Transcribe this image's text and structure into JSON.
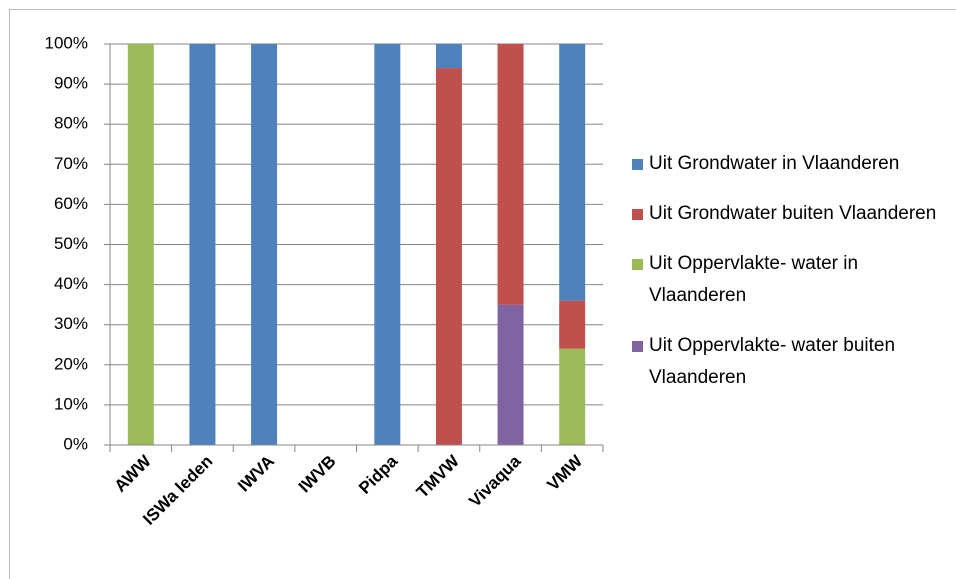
{
  "chart_data": {
    "type": "stacked_bar",
    "categories": [
      "AWW",
      "ISWa leden",
      "IWVA",
      "IWVB",
      "Pidpa",
      "TMVW",
      "Vivaqua",
      "VMW"
    ],
    "series": [
      {
        "name": "Uit Oppervlakte- water buiten Vlaanderen",
        "color": "#8064a2",
        "values": [
          0,
          0,
          0,
          0,
          0,
          0,
          35,
          0
        ]
      },
      {
        "name": "Uit Oppervlakte- water in Vlaanderen",
        "color": "#9bbb59",
        "values": [
          100,
          0,
          0,
          0,
          0,
          0,
          0,
          24
        ]
      },
      {
        "name": "Uit Grondwater buiten Vlaanderen",
        "color": "#c0504d",
        "values": [
          0,
          0,
          0,
          0,
          0,
          94,
          65,
          12
        ]
      },
      {
        "name": "Uit Grondwater in Vlaanderen",
        "color": "#4f81bd",
        "values": [
          0,
          100,
          100,
          0,
          100,
          6,
          0,
          64
        ]
      }
    ],
    "ylim": [
      0,
      100
    ],
    "yticks": [
      {
        "value": 0,
        "label": "0%"
      },
      {
        "value": 10,
        "label": "10%"
      },
      {
        "value": 20,
        "label": "20%"
      },
      {
        "value": 30,
        "label": "30%"
      },
      {
        "value": 40,
        "label": "40%"
      },
      {
        "value": 50,
        "label": "50%"
      },
      {
        "value": 60,
        "label": "60%"
      },
      {
        "value": 70,
        "label": "70%"
      },
      {
        "value": 80,
        "label": "80%"
      },
      {
        "value": 90,
        "label": "90%"
      },
      {
        "value": 100,
        "label": "100%"
      }
    ],
    "grid": true,
    "legend": "right"
  }
}
